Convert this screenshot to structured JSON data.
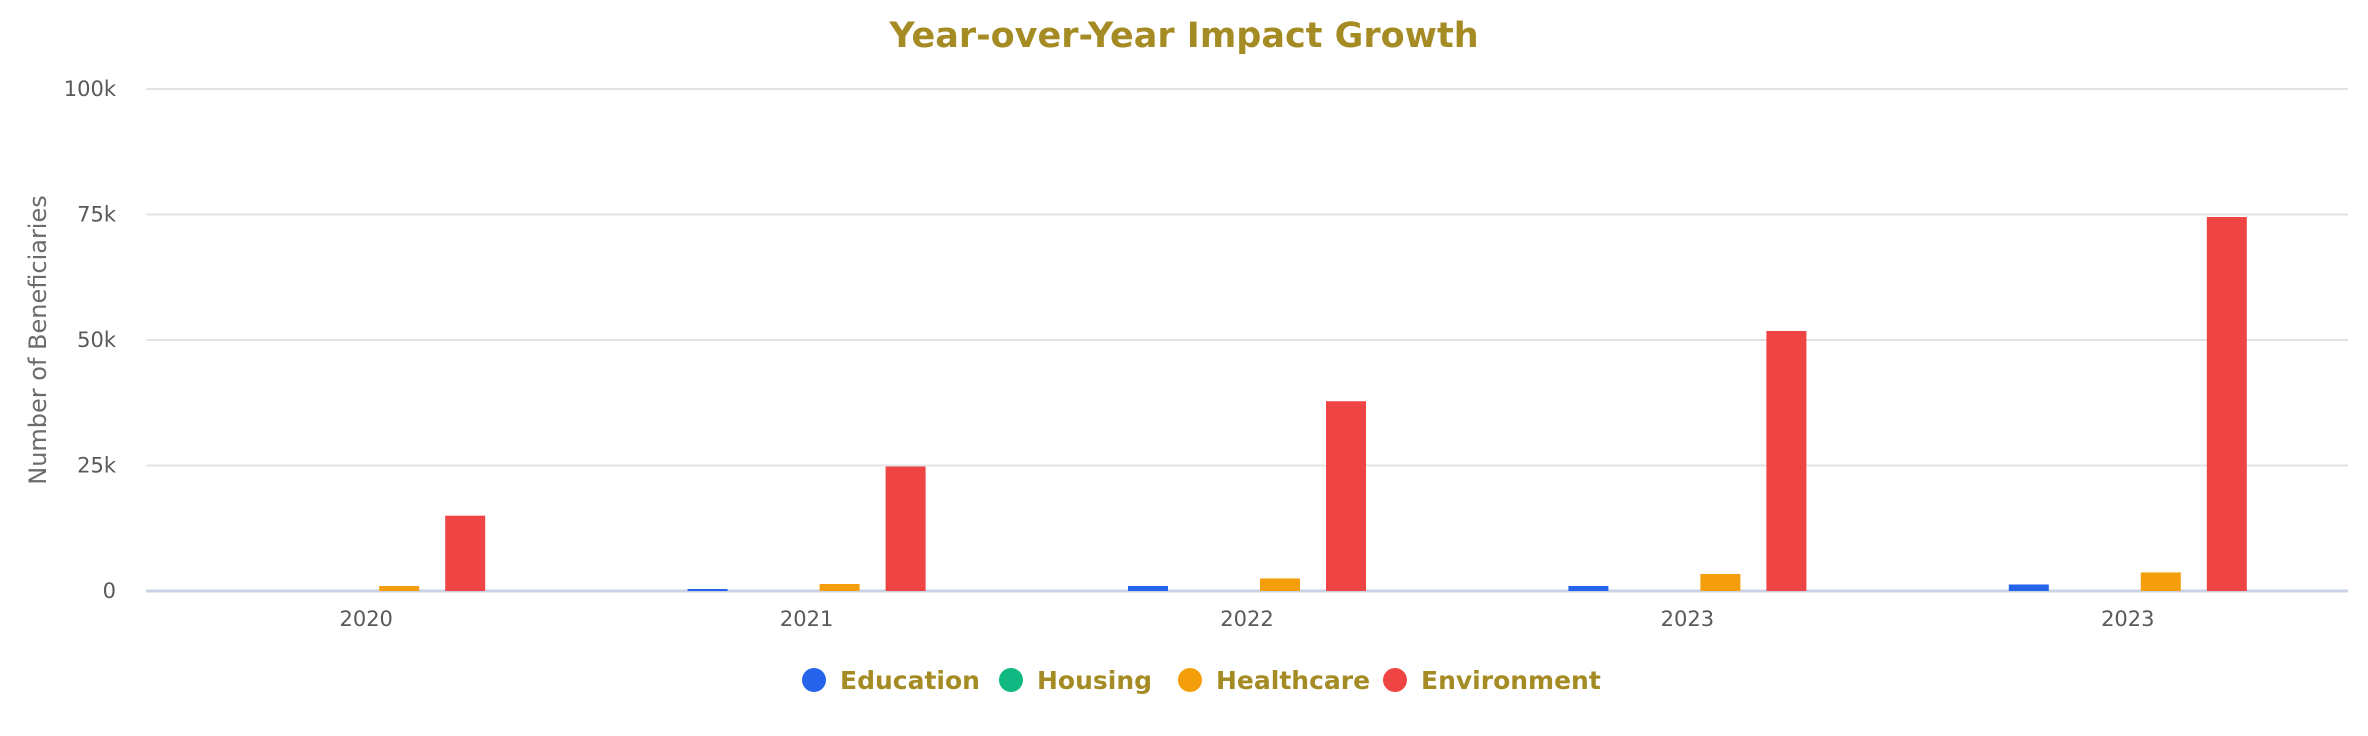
{
  "chart_data": {
    "type": "bar",
    "title": "Year-over-Year Impact Growth",
    "xlabel": "",
    "ylabel": "Number of Beneficiaries",
    "categories": [
      "2020",
      "2021",
      "2022",
      "2023",
      "2023"
    ],
    "ylim": [
      0,
      100000
    ],
    "yticks": [
      0,
      25000,
      50000,
      75000,
      100000
    ],
    "ytick_labels": [
      "0",
      "25k",
      "50k",
      "75k",
      "100k"
    ],
    "grid": true,
    "legend_position": "bottom-center",
    "series": [
      {
        "name": "Education",
        "color": "#2563eb",
        "values": [
          0,
          400,
          1000,
          1000,
          1300
        ]
      },
      {
        "name": "Housing",
        "color": "#10b981",
        "values": [
          0,
          0,
          0,
          0,
          0
        ]
      },
      {
        "name": "Healthcare",
        "color": "#f59e0b",
        "values": [
          1000,
          1400,
          2500,
          3400,
          3700
        ]
      },
      {
        "name": "Environment",
        "color": "#ef4444",
        "values": [
          15000,
          24800,
          37800,
          51800,
          74500
        ]
      }
    ]
  },
  "colors": {
    "title": "#a58b23",
    "legend_text": "#a58b23",
    "grid": "#e3e3e3",
    "baseline": "#c9d3e3"
  }
}
